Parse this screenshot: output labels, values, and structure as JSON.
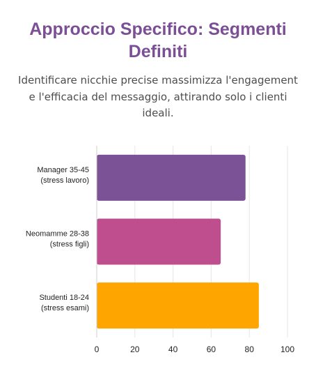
{
  "title": "Approccio Specifico: Segmenti Definiti",
  "subtitle": "Identificare nicchie precise massimizza l'engagement e l'efficacia del messaggio, attirando solo i clienti ideali.",
  "chart_data": {
    "type": "bar",
    "orientation": "horizontal",
    "categories": [
      [
        "Manager 35-45",
        "(stress lavoro)"
      ],
      [
        "Neomamme 28-38",
        "(stress figli)"
      ],
      [
        "Studenti 18-24",
        "(stress esami)"
      ]
    ],
    "values": [
      78,
      65,
      85
    ],
    "colors": [
      "#7b5295",
      "#bf4e8e",
      "#ffa500"
    ],
    "xlim": [
      0,
      100
    ],
    "xticks": [
      0,
      20,
      40,
      60,
      80,
      100
    ],
    "grid": true
  }
}
